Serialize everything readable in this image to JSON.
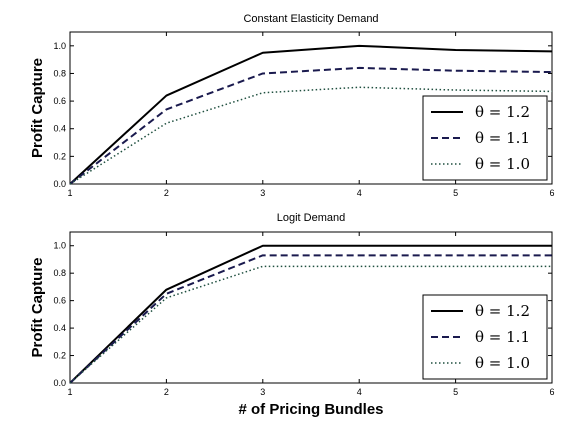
{
  "chart_data": [
    {
      "type": "line",
      "title": "Constant Elasticity Demand",
      "ylabel": "Profit Capture",
      "xlabel": "",
      "x": [
        1,
        2,
        3,
        4,
        5,
        6
      ],
      "xlim": [
        1,
        6
      ],
      "ylim": [
        0,
        1.1
      ],
      "xticks": [
        "1",
        "2",
        "3",
        "4",
        "5",
        "6"
      ],
      "yticks": [
        "0.0",
        "0.2",
        "0.4",
        "0.6",
        "0.8",
        "1.0"
      ],
      "grid": false,
      "legend_position": "lower-right",
      "series": [
        {
          "name": "θ = 1.2",
          "style": "solid",
          "color": "#000000",
          "values": [
            0,
            0.64,
            0.95,
            1.0,
            0.97,
            0.96
          ]
        },
        {
          "name": "θ = 1.1",
          "style": "dashed",
          "color": "#1a1a4e",
          "values": [
            0,
            0.54,
            0.8,
            0.84,
            0.82,
            0.81
          ]
        },
        {
          "name": "θ = 1.0",
          "style": "dotted",
          "color": "#1f4f3f",
          "values": [
            0,
            0.44,
            0.66,
            0.7,
            0.68,
            0.67
          ]
        }
      ]
    },
    {
      "type": "line",
      "title": "Logit Demand",
      "ylabel": "Profit Capture",
      "xlabel": "# of Pricing Bundles",
      "x": [
        1,
        2,
        3,
        4,
        5,
        6
      ],
      "xlim": [
        1,
        6
      ],
      "ylim": [
        0,
        1.1
      ],
      "xticks": [
        "1",
        "2",
        "3",
        "4",
        "5",
        "6"
      ],
      "yticks": [
        "0.0",
        "0.2",
        "0.4",
        "0.6",
        "0.8",
        "1.0"
      ],
      "grid": false,
      "legend_position": "lower-right",
      "series": [
        {
          "name": "θ = 1.2",
          "style": "solid",
          "color": "#000000",
          "values": [
            0,
            0.68,
            1.0,
            1.0,
            1.0,
            1.0
          ]
        },
        {
          "name": "θ = 1.1",
          "style": "dashed",
          "color": "#1a1a4e",
          "values": [
            0,
            0.65,
            0.93,
            0.93,
            0.93,
            0.93
          ]
        },
        {
          "name": "θ = 1.0",
          "style": "dotted",
          "color": "#1f4f3f",
          "values": [
            0,
            0.62,
            0.85,
            0.85,
            0.85,
            0.85
          ]
        }
      ]
    }
  ]
}
